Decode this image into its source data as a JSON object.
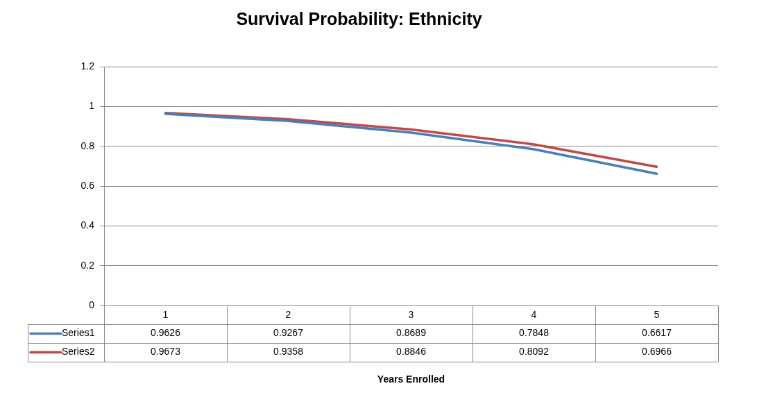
{
  "chart_data": {
    "type": "line",
    "title": "Survival Probability: Ethnicity",
    "annotations": [
      "Years Enrolled"
    ],
    "categories": [
      "1",
      "2",
      "3",
      "4",
      "5"
    ],
    "series": [
      {
        "name": "Series1",
        "color": "#4a7ebb",
        "values": [
          0.9626,
          0.9267,
          0.8689,
          0.7848,
          0.6617
        ]
      },
      {
        "name": "Series2",
        "color": "#be4b48",
        "values": [
          0.9673,
          0.9358,
          0.8846,
          0.8092,
          0.6966
        ]
      }
    ],
    "ylim": [
      0,
      1.2
    ],
    "yticks": [
      0,
      0.2,
      0.4,
      0.6,
      0.8,
      1,
      1.2
    ],
    "grid": "y",
    "legend": "bottom",
    "data_labels": true,
    "marker": "none",
    "line_style": "solid"
  }
}
